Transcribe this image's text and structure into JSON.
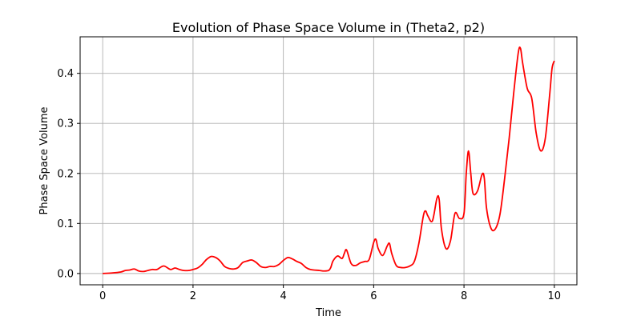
{
  "chart_data": {
    "type": "line",
    "title": "Evolution of Phase Space Volume in (Theta2, p2)",
    "xlabel": "Time",
    "ylabel": "Phase Space Volume",
    "xlim": [
      -0.5,
      10.5
    ],
    "ylim": [
      -0.0226,
      0.473
    ],
    "xticks": [
      0,
      2,
      4,
      6,
      8,
      10
    ],
    "xtick_labels": [
      "0",
      "2",
      "4",
      "6",
      "8",
      "10"
    ],
    "yticks": [
      0.0,
      0.1,
      0.2,
      0.3,
      0.4
    ],
    "ytick_labels": [
      "0.0",
      "0.1",
      "0.2",
      "0.3",
      "0.4"
    ],
    "grid": true,
    "legend": "none",
    "series": [
      {
        "color": "#ff0000",
        "x": [
          0,
          0.2,
          0.4,
          0.5,
          0.6,
          0.7,
          0.8,
          0.9,
          1.0,
          1.1,
          1.2,
          1.35,
          1.5,
          1.6,
          1.7,
          1.8,
          1.9,
          2.0,
          2.1,
          2.2,
          2.3,
          2.4,
          2.5,
          2.6,
          2.7,
          2.8,
          2.9,
          3.0,
          3.1,
          3.2,
          3.3,
          3.4,
          3.5,
          3.6,
          3.7,
          3.8,
          3.9,
          4.0,
          4.1,
          4.2,
          4.3,
          4.4,
          4.5,
          4.6,
          4.8,
          4.9,
          5.0,
          5.05,
          5.1,
          5.2,
          5.3,
          5.35,
          5.4,
          5.5,
          5.6,
          5.7,
          5.8,
          5.9,
          6.0,
          6.05,
          6.1,
          6.2,
          6.3,
          6.35,
          6.4,
          6.5,
          6.6,
          6.7,
          6.8,
          6.9,
          7.0,
          7.1,
          7.15,
          7.2,
          7.3,
          7.4,
          7.45,
          7.5,
          7.6,
          7.7,
          7.8,
          7.9,
          8.0,
          8.05,
          8.1,
          8.15,
          8.2,
          8.3,
          8.4,
          8.45,
          8.5,
          8.6,
          8.7,
          8.8,
          8.9,
          9.0,
          9.1,
          9.2,
          9.25,
          9.3,
          9.4,
          9.5,
          9.6,
          9.7,
          9.8,
          9.9,
          9.95,
          10.0
        ],
        "y": [
          0.0,
          0.001,
          0.003,
          0.006,
          0.007,
          0.009,
          0.005,
          0.004,
          0.006,
          0.008,
          0.008,
          0.015,
          0.008,
          0.011,
          0.008,
          0.006,
          0.006,
          0.008,
          0.011,
          0.018,
          0.028,
          0.034,
          0.032,
          0.025,
          0.014,
          0.01,
          0.009,
          0.012,
          0.022,
          0.025,
          0.027,
          0.022,
          0.014,
          0.012,
          0.014,
          0.014,
          0.018,
          0.026,
          0.032,
          0.029,
          0.024,
          0.02,
          0.012,
          0.008,
          0.006,
          0.005,
          0.006,
          0.012,
          0.025,
          0.035,
          0.03,
          0.04,
          0.047,
          0.02,
          0.016,
          0.021,
          0.024,
          0.028,
          0.062,
          0.068,
          0.05,
          0.036,
          0.055,
          0.06,
          0.04,
          0.016,
          0.012,
          0.012,
          0.015,
          0.024,
          0.06,
          0.115,
          0.125,
          0.115,
          0.105,
          0.15,
          0.148,
          0.09,
          0.05,
          0.065,
          0.12,
          0.11,
          0.12,
          0.2,
          0.245,
          0.2,
          0.16,
          0.165,
          0.198,
          0.19,
          0.13,
          0.09,
          0.09,
          0.12,
          0.19,
          0.27,
          0.36,
          0.44,
          0.45,
          0.42,
          0.37,
          0.35,
          0.28,
          0.245,
          0.27,
          0.36,
          0.41,
          0.425
        ]
      }
    ]
  }
}
